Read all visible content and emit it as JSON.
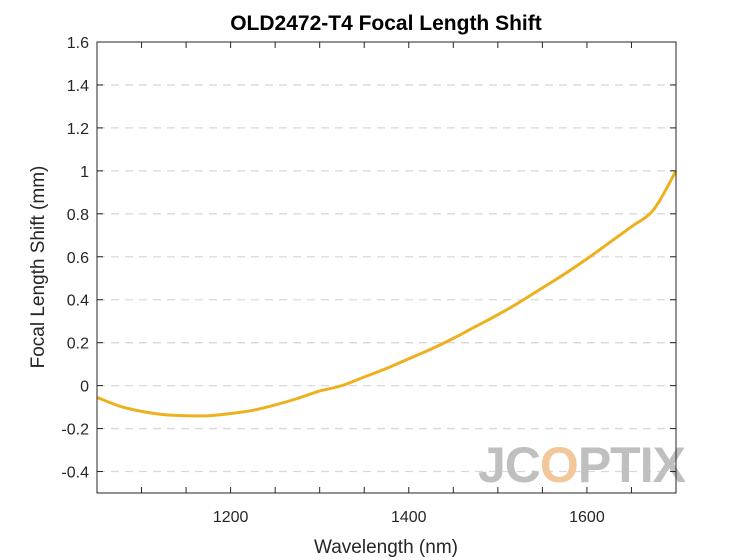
{
  "chart_data": {
    "type": "line",
    "title": "OLD2472-T4 Focal Length Shift",
    "xlabel": "Wavelength (nm)",
    "ylabel": "Focal Length Shift (mm)",
    "xlim": [
      1050,
      1700
    ],
    "ylim": [
      -0.5,
      1.6
    ],
    "xticks": [
      1200,
      1400,
      1600
    ],
    "yticks": [
      1.6,
      1.4,
      1.2,
      1,
      0.8,
      0.6,
      0.4,
      0.2,
      0,
      -0.2,
      -0.4
    ],
    "ytick_labels": [
      "1.6",
      "1.4",
      "1.2",
      "1",
      "0.8",
      "0.6",
      "0.4",
      "0.2",
      "0",
      "-0.2",
      "-0.4"
    ],
    "xtick_labels": [
      "1200",
      "1400",
      "1600"
    ],
    "grid": "horizontal-dashed",
    "series": [
      {
        "color": "#EDB120",
        "x": [
          1050,
          1075,
          1100,
          1125,
          1150,
          1175,
          1200,
          1225,
          1250,
          1275,
          1300,
          1325,
          1350,
          1375,
          1400,
          1425,
          1450,
          1475,
          1500,
          1525,
          1550,
          1575,
          1600,
          1625,
          1650,
          1675,
          1700
        ],
        "y": [
          -0.055,
          -0.095,
          -0.12,
          -0.135,
          -0.14,
          -0.14,
          -0.13,
          -0.115,
          -0.09,
          -0.06,
          -0.025,
          0.0,
          0.04,
          0.08,
          0.125,
          0.17,
          0.22,
          0.275,
          0.33,
          0.39,
          0.455,
          0.52,
          0.59,
          0.665,
          0.74,
          0.82,
          1.0
        ]
      }
    ]
  },
  "watermark": {
    "text_part1": "JC",
    "text_part2": "O",
    "text_part3": "PTIX",
    "color_main": "#bfbfbf",
    "color_accent": "#f2c79a"
  }
}
